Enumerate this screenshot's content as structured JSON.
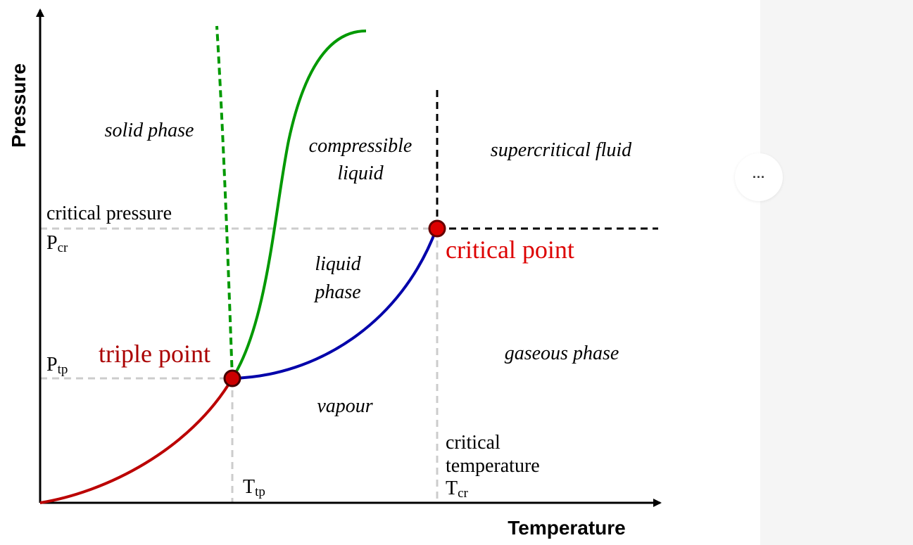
{
  "diagram": {
    "axis_labels": {
      "y": "Pressure",
      "x": "Temperature"
    },
    "regions": {
      "solid": "solid phase",
      "compressible_liquid": [
        "compressible",
        "liquid"
      ],
      "supercritical": "supercritical fluid",
      "liquid": [
        "liquid",
        "phase"
      ],
      "gaseous": "gaseous phase",
      "vapour": "vapour"
    },
    "points": {
      "critical": "critical point",
      "triple": "triple point"
    },
    "markers": {
      "critical_pressure": "critical pressure",
      "p_cr": {
        "main": "P",
        "sub": "cr"
      },
      "p_tp": {
        "main": "P",
        "sub": "tp"
      },
      "t_tp": {
        "main": "T",
        "sub": "tp"
      },
      "critical_temperature": [
        "critical",
        "temperature"
      ],
      "t_cr": {
        "main": "T",
        "sub": "cr"
      }
    }
  },
  "menu_button": "···"
}
